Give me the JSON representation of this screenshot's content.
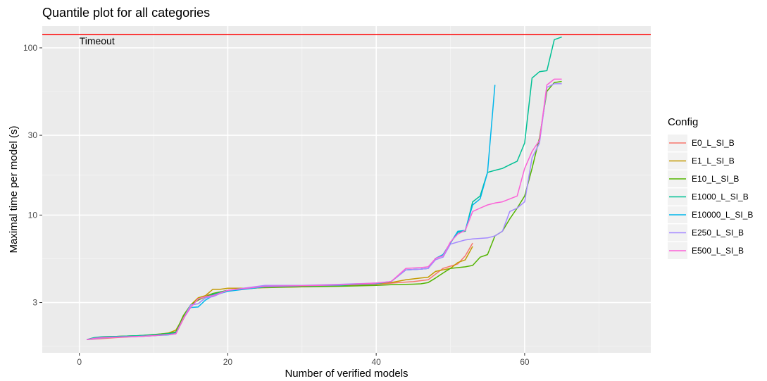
{
  "chart_data": {
    "type": "line",
    "title": "Quantile plot for all categories",
    "xlabel": "Number of verified models",
    "ylabel": "Maximal time per model (s)",
    "xlim": [
      -5,
      77
    ],
    "ylim": [
      1.5,
      135
    ],
    "y_scale": "log",
    "x_ticks": [
      0,
      20,
      40,
      60
    ],
    "y_ticks": [
      3,
      10,
      30,
      100
    ],
    "grid": true,
    "legend": {
      "title": "Config",
      "position": "right"
    },
    "timeout": {
      "label": "Timeout",
      "value": 120,
      "color": "#ff0000"
    },
    "series": [
      {
        "name": "E0_L_SI_B",
        "color": "#F8766D",
        "x": [
          1,
          5,
          10,
          13,
          15,
          17,
          20,
          25,
          30,
          35,
          40,
          43,
          45,
          47,
          49,
          51,
          52,
          53
        ],
        "y": [
          1.8,
          1.85,
          1.9,
          1.95,
          2.9,
          3.3,
          3.55,
          3.7,
          3.75,
          3.78,
          3.85,
          3.95,
          4.0,
          4.1,
          4.8,
          5.1,
          5.7,
          6.8
        ]
      },
      {
        "name": "E1_L_SI_B",
        "color": "#C49A00",
        "x": [
          1,
          3,
          5,
          8,
          10,
          12,
          13,
          15,
          16,
          17,
          18,
          19,
          20,
          22,
          25,
          30,
          35,
          40,
          42,
          44,
          46,
          47,
          48,
          49,
          50,
          51,
          52,
          53
        ],
        "y": [
          1.8,
          1.85,
          1.88,
          1.9,
          1.92,
          1.97,
          2.05,
          2.9,
          3.2,
          3.3,
          3.6,
          3.6,
          3.65,
          3.65,
          3.68,
          3.72,
          3.78,
          3.9,
          3.95,
          4.1,
          4.2,
          4.25,
          4.6,
          4.7,
          4.8,
          5.2,
          5.4,
          6.5
        ]
      },
      {
        "name": "E10_L_SI_B",
        "color": "#53B400",
        "x": [
          1,
          2,
          3,
          5,
          8,
          10,
          12,
          13,
          14,
          15,
          16,
          17,
          18,
          20,
          25,
          30,
          35,
          40,
          42,
          44,
          45,
          46,
          47,
          48,
          49,
          50,
          51,
          52,
          53,
          54,
          55,
          56,
          57,
          58,
          59,
          60,
          61,
          62,
          63,
          64,
          65
        ],
        "y": [
          1.8,
          1.82,
          1.87,
          1.88,
          1.9,
          1.93,
          1.96,
          2.0,
          2.5,
          2.9,
          3.1,
          3.25,
          3.4,
          3.55,
          3.7,
          3.72,
          3.75,
          3.8,
          3.83,
          3.85,
          3.86,
          3.88,
          3.95,
          4.2,
          4.5,
          4.8,
          4.85,
          4.9,
          5.0,
          5.6,
          5.8,
          7.5,
          8.0,
          9.5,
          11.0,
          13.0,
          19.0,
          29.0,
          55.0,
          62.0,
          63.0
        ]
      },
      {
        "name": "E1000_L_SI_B",
        "color": "#00C094",
        "x": [
          1,
          2,
          3,
          5,
          8,
          10,
          12,
          13,
          14,
          15,
          16,
          17,
          18,
          20,
          25,
          30,
          35,
          40,
          42,
          44,
          46,
          47,
          48,
          49,
          50,
          51,
          52,
          53,
          54,
          55,
          56,
          57,
          58,
          59,
          60,
          61,
          62,
          63,
          64,
          65
        ],
        "y": [
          1.8,
          1.85,
          1.87,
          1.88,
          1.9,
          1.92,
          1.95,
          1.98,
          2.4,
          2.9,
          2.95,
          3.2,
          3.35,
          3.55,
          3.72,
          3.78,
          3.8,
          3.9,
          4.0,
          4.7,
          4.75,
          4.8,
          5.5,
          5.8,
          6.8,
          7.9,
          8.0,
          12.0,
          13.0,
          18.0,
          18.5,
          19.0,
          20.0,
          21.0,
          27.0,
          66.0,
          72.0,
          73.0,
          112.0,
          116.0
        ]
      },
      {
        "name": "E10000_L_SI_B",
        "color": "#00B6EB",
        "x": [
          1,
          2,
          3,
          5,
          8,
          10,
          12,
          13,
          14,
          15,
          16,
          17,
          18,
          20,
          25,
          30,
          35,
          40,
          42,
          44,
          46,
          47,
          48,
          49,
          50,
          51,
          52,
          53,
          54,
          55,
          56
        ],
        "y": [
          1.8,
          1.83,
          1.85,
          1.87,
          1.88,
          1.9,
          1.92,
          1.95,
          2.4,
          2.8,
          2.82,
          3.1,
          3.3,
          3.5,
          3.72,
          3.78,
          3.82,
          3.9,
          4.0,
          4.7,
          4.75,
          4.8,
          5.5,
          5.8,
          6.8,
          8.0,
          8.1,
          11.5,
          12.5,
          18.0,
          60.0
        ]
      },
      {
        "name": "E250_L_SI_B",
        "color": "#A58AFF",
        "x": [
          1,
          2,
          3,
          5,
          8,
          10,
          12,
          13,
          14,
          15,
          16,
          17,
          18,
          20,
          25,
          30,
          35,
          40,
          42,
          44,
          46,
          47,
          48,
          49,
          50,
          51,
          52,
          53,
          54,
          55,
          56,
          57,
          58,
          59,
          60,
          61,
          62,
          63,
          64,
          65
        ],
        "y": [
          1.8,
          1.82,
          1.84,
          1.86,
          1.88,
          1.9,
          1.93,
          1.95,
          2.4,
          2.9,
          2.95,
          3.2,
          3.25,
          3.55,
          3.8,
          3.8,
          3.85,
          3.92,
          4.0,
          4.7,
          4.75,
          4.8,
          5.4,
          5.6,
          6.7,
          6.9,
          7.1,
          7.2,
          7.25,
          7.3,
          7.5,
          8.0,
          10.5,
          11.0,
          12.0,
          22.0,
          27.0,
          58.0,
          61.0,
          61.0
        ]
      },
      {
        "name": "E500_L_SI_B",
        "color": "#FB61D7",
        "x": [
          1,
          2,
          3,
          5,
          8,
          10,
          12,
          13,
          14,
          15,
          16,
          17,
          18,
          20,
          25,
          30,
          35,
          40,
          42,
          44,
          46,
          47,
          48,
          49,
          50,
          51,
          52,
          53,
          54,
          55,
          56,
          57,
          58,
          59,
          60,
          61,
          62,
          63,
          64,
          65
        ],
        "y": [
          1.8,
          1.83,
          1.85,
          1.86,
          1.88,
          1.9,
          1.93,
          1.95,
          2.4,
          2.8,
          3.15,
          3.25,
          3.3,
          3.55,
          3.75,
          3.78,
          3.82,
          3.92,
          4.0,
          4.8,
          4.85,
          4.9,
          5.5,
          5.7,
          6.9,
          7.7,
          8.1,
          10.5,
          11.0,
          11.5,
          11.8,
          12.0,
          12.5,
          13.0,
          19.0,
          24.0,
          28.0,
          60.0,
          65.0,
          65.0
        ]
      }
    ]
  }
}
